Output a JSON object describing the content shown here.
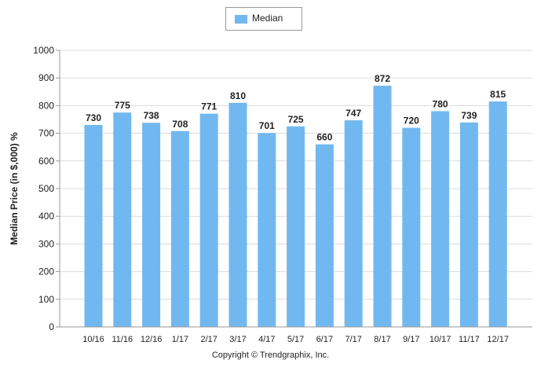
{
  "legend": {
    "label": "Median"
  },
  "footer": {
    "copyright": "Copyright © Trendgraphix, Inc."
  },
  "colors": {
    "bar": "#72b8f0",
    "grid": "#dcdcdc",
    "axis": "#9a9a9a",
    "text": "#222222"
  },
  "chart_data": {
    "type": "bar",
    "categories": [
      "10/16",
      "11/16",
      "12/16",
      "1/17",
      "2/17",
      "3/17",
      "4/17",
      "5/17",
      "6/17",
      "7/17",
      "8/17",
      "9/17",
      "10/17",
      "11/17",
      "12/17"
    ],
    "series": [
      {
        "name": "Median",
        "values": [
          730,
          775,
          738,
          708,
          771,
          810,
          701,
          725,
          660,
          747,
          872,
          720,
          780,
          739,
          815
        ]
      }
    ],
    "ylabel": "Median Price (in $,000) %",
    "xlabel": "",
    "ylim": [
      0,
      1000
    ],
    "yticks": [
      0,
      100,
      200,
      300,
      400,
      500,
      600,
      700,
      800,
      900,
      1000
    ],
    "grid": true,
    "legend_position": "top-center",
    "data_labels": true
  }
}
